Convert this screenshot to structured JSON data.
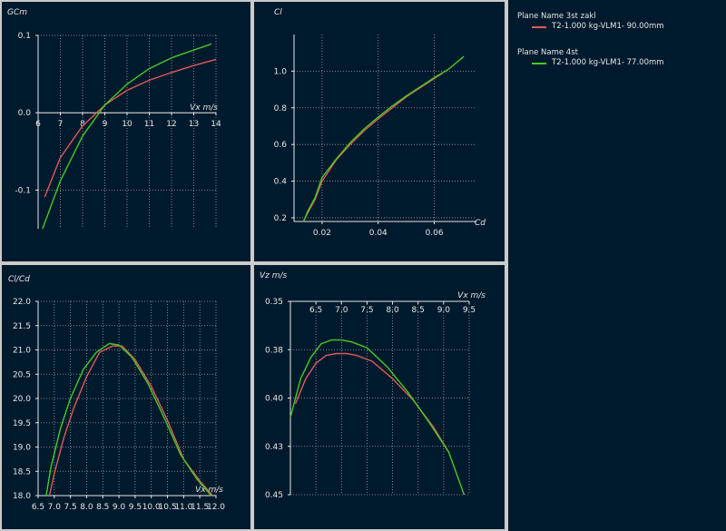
{
  "colors": {
    "background": "#001a2d",
    "frame": "#cbcbcb",
    "grid": "#9aa6b0",
    "axis": "#e6e6e6",
    "text": "#e6e6e6",
    "red": "#e05a5a",
    "green": "#44cc22"
  },
  "legend": {
    "items": [
      {
        "plane": "Plane Name 3st zakl",
        "curve": "T2-1.000 kg-VLM1- 90.00mm",
        "color": "#e05a5a"
      },
      {
        "plane": "Plane Name 4st",
        "curve": "T2-1.000 kg-VLM1- 77.00mm",
        "color": "#44cc22"
      }
    ]
  },
  "chart_data": [
    {
      "id": "gcm",
      "type": "line",
      "ylabel": "GCm",
      "xlabel": "Vx m/s",
      "xlim": [
        6,
        14
      ],
      "ylim": [
        -0.15,
        0.1
      ],
      "xticks": [
        6,
        7,
        8,
        9,
        10,
        11,
        12,
        13,
        14
      ],
      "xtick_labels": [
        "6",
        "7",
        "8",
        "9",
        "10",
        "11",
        "12",
        "13",
        "14"
      ],
      "yticks": [
        -0.1,
        0,
        0.1
      ],
      "ytick_labels": [
        "-0.1",
        "0.0",
        "0.1"
      ],
      "x_axis_at": 0,
      "series": [
        {
          "name": "T2-1.000 kg-VLM1- 90.00mm",
          "color": "#e05a5a",
          "x": [
            6.3,
            7,
            8,
            9,
            10,
            11,
            12,
            13,
            14
          ],
          "y": [
            -0.109,
            -0.058,
            -0.017,
            0.01,
            0.029,
            0.042,
            0.052,
            0.061,
            0.069
          ]
        },
        {
          "name": "T2-1.000 kg-VLM1- 77.00mm",
          "color": "#44cc22",
          "x": [
            6.2,
            7,
            8,
            9,
            10,
            11,
            12,
            13,
            13.8
          ],
          "y": [
            -0.15,
            -0.088,
            -0.03,
            0.01,
            0.037,
            0.057,
            0.071,
            0.081,
            0.089
          ]
        }
      ]
    },
    {
      "id": "clcd",
      "type": "line",
      "ylabel": "Cl",
      "xlabel": "Cd",
      "xlim": [
        0.01,
        0.075
      ],
      "ylim": [
        0.18,
        1.2
      ],
      "xticks": [
        0.02,
        0.04,
        0.06
      ],
      "xtick_labels": [
        "0.02",
        "0.04",
        "0.06"
      ],
      "yticks": [
        0.2,
        0.4,
        0.6,
        0.8,
        1.0
      ],
      "ytick_labels": [
        "0.2",
        "0.4",
        "0.6",
        "0.8",
        "1.0"
      ],
      "series": [
        {
          "name": "T2-1.000 kg-VLM1- 90.00mm",
          "color": "#e05a5a",
          "x": [
            0.0135,
            0.015,
            0.0175,
            0.02,
            0.025,
            0.03,
            0.035,
            0.04,
            0.045,
            0.05,
            0.055,
            0.06,
            0.063
          ],
          "y": [
            0.185,
            0.23,
            0.3,
            0.4,
            0.515,
            0.6,
            0.675,
            0.74,
            0.8,
            0.86,
            0.91,
            0.96,
            0.99
          ]
        },
        {
          "name": "T2-1.000 kg-VLM1- 77.00mm",
          "color": "#44cc22",
          "x": [
            0.0135,
            0.015,
            0.0175,
            0.02,
            0.025,
            0.03,
            0.035,
            0.04,
            0.045,
            0.05,
            0.055,
            0.06,
            0.065,
            0.0705
          ],
          "y": [
            0.185,
            0.24,
            0.31,
            0.42,
            0.52,
            0.61,
            0.685,
            0.75,
            0.81,
            0.865,
            0.915,
            0.965,
            1.01,
            1.08
          ]
        }
      ]
    },
    {
      "id": "clcd_ratio",
      "type": "line",
      "ylabel": "Cl/Cd",
      "xlabel": "Vx m/s",
      "xlim": [
        6.5,
        12
      ],
      "ylim": [
        18,
        22
      ],
      "xticks": [
        6.5,
        7,
        7.5,
        8,
        8.5,
        9,
        9.5,
        10,
        10.5,
        11,
        11.5,
        12
      ],
      "xtick_labels": [
        "6.5",
        "7.0",
        "7.5",
        "8.0",
        "8.5",
        "9.0",
        "9.5",
        "10.0",
        "10.5",
        "11.0",
        "11.5",
        "12.0"
      ],
      "yticks": [
        18,
        18.5,
        19,
        19.5,
        20,
        20.5,
        21,
        21.5,
        22
      ],
      "ytick_labels": [
        "18.0",
        "18.5",
        "19.0",
        "19.5",
        "20.0",
        "20.5",
        "21.0",
        "21.5",
        "22.0"
      ],
      "series": [
        {
          "name": "T2-1.000 kg-VLM1- 90.00mm",
          "color": "#e05a5a",
          "x": [
            6.85,
            7,
            7.3,
            7.6,
            8,
            8.4,
            8.8,
            9.1,
            9.5,
            10,
            10.5,
            11,
            11.5,
            11.9
          ],
          "y": [
            18,
            18.45,
            19.2,
            19.8,
            20.45,
            20.95,
            21.08,
            21.08,
            20.8,
            20.25,
            19.55,
            18.75,
            18.3,
            18
          ]
        },
        {
          "name": "T2-1.000 kg-VLM1- 77.00mm",
          "color": "#44cc22",
          "x": [
            6.75,
            6.9,
            7.2,
            7.5,
            7.9,
            8.3,
            8.7,
            9.0,
            9.4,
            9.9,
            10.4,
            10.9,
            11.4,
            11.85
          ],
          "y": [
            18,
            18.6,
            19.4,
            20.0,
            20.6,
            20.95,
            21.13,
            21.1,
            20.85,
            20.3,
            19.6,
            18.85,
            18.35,
            18
          ]
        }
      ]
    },
    {
      "id": "vz",
      "type": "line",
      "ylabel": "Vz m/s",
      "xlabel": "Vx m/s",
      "xlim": [
        6,
        9.5
      ],
      "ylim": [
        0.35,
        0.45
      ],
      "y_inverted": true,
      "xticks": [
        6.5,
        7,
        7.5,
        8,
        8.5,
        9,
        9.5
      ],
      "xtick_labels": [
        "6.5",
        "7.0",
        "7.5",
        "8.0",
        "8.5",
        "9.0",
        "9.5"
      ],
      "yticks": [
        0.35,
        0.375,
        0.4,
        0.425,
        0.45
      ],
      "ytick_labels": [
        "0.35",
        "0.38",
        "0.40",
        "0.43",
        "0.45"
      ],
      "series": [
        {
          "name": "T2-1.000 kg-VLM1- 90.00mm",
          "color": "#e05a5a",
          "x": [
            6.1,
            6.3,
            6.5,
            6.7,
            6.9,
            7.1,
            7.3,
            7.6,
            8,
            8.4,
            8.8,
            9.1
          ],
          "y": [
            0.403,
            0.39,
            0.382,
            0.378,
            0.377,
            0.377,
            0.378,
            0.381,
            0.39,
            0.401,
            0.415,
            0.428
          ]
        },
        {
          "name": "T2-1.000 kg-VLM1- 77.00mm",
          "color": "#44cc22",
          "x": [
            6.0,
            6.2,
            6.4,
            6.6,
            6.8,
            7.0,
            7.2,
            7.5,
            7.9,
            8.3,
            8.7,
            9.1,
            9.4
          ],
          "y": [
            0.41,
            0.39,
            0.379,
            0.372,
            0.37,
            0.37,
            0.371,
            0.374,
            0.384,
            0.397,
            0.412,
            0.428,
            0.45
          ]
        }
      ]
    }
  ]
}
